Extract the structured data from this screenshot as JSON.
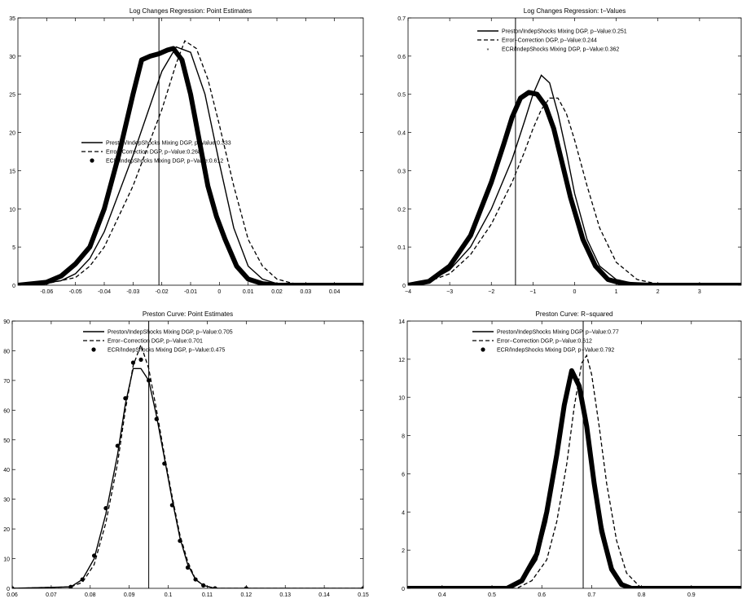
{
  "chart_data": [
    {
      "type": "line",
      "title": "Log Changes Regression: Point Estimates",
      "xlim": [
        -0.07,
        0.05
      ],
      "ylim": [
        0,
        35
      ],
      "xticks": [
        -0.06,
        -0.05,
        -0.04,
        -0.03,
        -0.02,
        -0.01,
        0,
        0.01,
        0.02,
        0.03,
        0.04
      ],
      "xtick_labels": [
        "-0.06",
        "-0.05",
        "-0.04",
        "-0.03",
        "-0.02",
        "-0.01",
        "0",
        "0.01",
        "0.02",
        "0.03",
        "0.04"
      ],
      "yticks": [
        0,
        5,
        10,
        15,
        20,
        25,
        30,
        35
      ],
      "ytick_labels": [
        "0",
        "5",
        "10",
        "15",
        "20",
        "25",
        "30",
        "35"
      ],
      "vline": -0.021,
      "legend_position": "center-left",
      "series": [
        {
          "name": "Preston/IndepShocks Mixing DGP, p−Value:0.333",
          "style": "solid",
          "x": [
            -0.07,
            -0.06,
            -0.055,
            -0.05,
            -0.045,
            -0.04,
            -0.035,
            -0.03,
            -0.025,
            -0.02,
            -0.015,
            -0.01,
            -0.005,
            0,
            0.005,
            0.01,
            0.015,
            0.02,
            0.03,
            0.05
          ],
          "y": [
            0,
            0.3,
            0.6,
            1.5,
            3.5,
            7,
            12,
            17,
            22.5,
            28,
            31.2,
            30.5,
            25,
            16,
            7.5,
            2.5,
            0.8,
            0.2,
            0,
            0
          ]
        },
        {
          "name": "Error−Correction DGP, p−Value:0.268",
          "style": "dashed",
          "x": [
            -0.07,
            -0.06,
            -0.05,
            -0.045,
            -0.04,
            -0.035,
            -0.03,
            -0.025,
            -0.02,
            -0.015,
            -0.012,
            -0.008,
            -0.004,
            0,
            0.005,
            0.01,
            0.015,
            0.02,
            0.025,
            0.03,
            0.05
          ],
          "y": [
            0,
            0.2,
            1,
            2.5,
            5,
            9,
            13,
            18,
            23,
            29,
            32,
            31,
            27,
            21,
            13,
            6,
            2.5,
            0.8,
            0.3,
            0,
            0
          ]
        },
        {
          "name": "ECR/IndepShocks Mixing DGP, p−Value:0.612",
          "style": "dots",
          "x": [
            -0.07,
            -0.06,
            -0.055,
            -0.05,
            -0.045,
            -0.04,
            -0.035,
            -0.03,
            -0.027,
            -0.024,
            -0.021,
            -0.018,
            -0.016,
            -0.013,
            -0.01,
            -0.007,
            -0.004,
            -0.001,
            0.002,
            0.006,
            0.01,
            0.015,
            0.02,
            0.03,
            0.05
          ],
          "y": [
            0,
            0.4,
            1.2,
            2.8,
            5,
            10,
            17,
            25,
            29.5,
            30,
            30.3,
            30.8,
            31,
            29.5,
            25,
            19,
            13,
            9,
            6,
            2.5,
            0.8,
            0.2,
            0,
            0,
            0
          ]
        }
      ]
    },
    {
      "type": "line",
      "title": "Log Changes Regression: t−Values",
      "xlim": [
        -4,
        4
      ],
      "ylim": [
        0,
        0.7
      ],
      "xticks": [
        -4,
        -3,
        -2,
        -1,
        0,
        1,
        2,
        3
      ],
      "xtick_labels": [
        "−4",
        "−3",
        "−2",
        "−1",
        "0",
        "1",
        "2",
        "3"
      ],
      "yticks": [
        0,
        0.1,
        0.2,
        0.3,
        0.4,
        0.5,
        0.6,
        0.7
      ],
      "ytick_labels": [
        "0",
        "0.1",
        "0.2",
        "0.3",
        "0.4",
        "0.5",
        "0.6",
        "0.7"
      ],
      "vline": -1.42,
      "legend_position": "top-center",
      "series": [
        {
          "name": "Preston/IndepShocks Mixing DGP, p−Value:0.251",
          "style": "solid",
          "x": [
            -4,
            -3.5,
            -3,
            -2.5,
            -2,
            -1.5,
            -1.2,
            -1,
            -0.8,
            -0.6,
            -0.4,
            -0.2,
            0,
            0.3,
            0.6,
            1,
            1.5,
            2,
            3,
            4
          ],
          "y": [
            0,
            0.01,
            0.04,
            0.1,
            0.2,
            0.33,
            0.43,
            0.5,
            0.55,
            0.53,
            0.45,
            0.35,
            0.24,
            0.12,
            0.05,
            0.015,
            0.003,
            0,
            0,
            0
          ]
        },
        {
          "name": "Error−Correction DGP, p−Value:0.244",
          "style": "dashed",
          "x": [
            -4,
            -3.5,
            -3,
            -2.5,
            -2,
            -1.5,
            -1.2,
            -1,
            -0.8,
            -0.6,
            -0.4,
            -0.2,
            0,
            0.3,
            0.6,
            1,
            1.5,
            2,
            3,
            4
          ],
          "y": [
            0,
            0.01,
            0.03,
            0.08,
            0.16,
            0.27,
            0.35,
            0.41,
            0.46,
            0.49,
            0.49,
            0.45,
            0.38,
            0.26,
            0.15,
            0.06,
            0.015,
            0.003,
            0,
            0
          ]
        },
        {
          "name": "ECR/IndepShocks Mixing DGP, p−Value:0.362",
          "style": "stars",
          "x": [
            -4,
            -3.5,
            -3,
            -2.5,
            -2,
            -1.7,
            -1.5,
            -1.3,
            -1.1,
            -0.9,
            -0.7,
            -0.5,
            -0.3,
            -0.1,
            0.2,
            0.5,
            0.8,
            1.2,
            1.8,
            2.5,
            4
          ],
          "y": [
            0,
            0.01,
            0.05,
            0.13,
            0.27,
            0.37,
            0.44,
            0.49,
            0.505,
            0.5,
            0.47,
            0.41,
            0.32,
            0.23,
            0.12,
            0.05,
            0.015,
            0.003,
            0,
            0,
            0
          ]
        }
      ]
    },
    {
      "type": "line",
      "title": "Preston Curve: Point Estimates",
      "xlim": [
        0.06,
        0.15
      ],
      "ylim": [
        0,
        90
      ],
      "xticks": [
        0.06,
        0.07,
        0.08,
        0.09,
        0.1,
        0.11,
        0.12,
        0.13,
        0.14,
        0.15
      ],
      "xtick_labels": [
        "0.06",
        "0.07",
        "0.08",
        "0.09",
        "0.1",
        "0.11",
        "0.12",
        "0.13",
        "0.14",
        "0.15"
      ],
      "yticks": [
        0,
        10,
        20,
        30,
        40,
        50,
        60,
        70,
        80,
        90
      ],
      "ytick_labels": [
        "0",
        "10",
        "20",
        "30",
        "40",
        "50",
        "60",
        "70",
        "80",
        "90"
      ],
      "vline": 0.095,
      "legend_position": "top-center",
      "series": [
        {
          "name": "Preston/IndepShocks Mixing DGP, p−Value:0.705",
          "style": "solid",
          "x": [
            0.06,
            0.075,
            0.078,
            0.081,
            0.084,
            0.087,
            0.089,
            0.091,
            0.093,
            0.095,
            0.097,
            0.099,
            0.101,
            0.103,
            0.105,
            0.107,
            0.109,
            0.112,
            0.12,
            0.15
          ],
          "y": [
            0,
            0.5,
            3,
            10,
            25,
            45,
            62,
            74,
            74,
            70,
            58,
            44,
            30,
            17,
            8,
            3,
            1,
            0,
            0,
            0
          ]
        },
        {
          "name": "Error−Correction DGP, p−Value:0.701",
          "style": "dashed",
          "x": [
            0.06,
            0.075,
            0.078,
            0.081,
            0.084,
            0.087,
            0.089,
            0.091,
            0.093,
            0.095,
            0.097,
            0.099,
            0.101,
            0.103,
            0.105,
            0.107,
            0.109,
            0.112,
            0.12,
            0.15
          ],
          "y": [
            0,
            0.5,
            2,
            8,
            22,
            42,
            60,
            75,
            82,
            74,
            60,
            45,
            31,
            18,
            9,
            3,
            1,
            0,
            0,
            0
          ]
        },
        {
          "name": "ECR/IndepShocks Mixing DGP, p−Value:0.475",
          "style": "dots",
          "x": [
            0.06,
            0.075,
            0.078,
            0.081,
            0.084,
            0.087,
            0.089,
            0.091,
            0.093,
            0.095,
            0.097,
            0.099,
            0.101,
            0.103,
            0.105,
            0.107,
            0.109,
            0.112,
            0.12,
            0.15
          ],
          "y": [
            0,
            0.5,
            3,
            11,
            27,
            48,
            64,
            76,
            77,
            70,
            57,
            42,
            28,
            16,
            7,
            3,
            1,
            0,
            0,
            0
          ]
        }
      ]
    },
    {
      "type": "line",
      "title": "Preston Curve: R−squared",
      "xlim": [
        0.33,
        1.0
      ],
      "ylim": [
        0,
        14
      ],
      "xticks": [
        0.4,
        0.5,
        0.6,
        0.7,
        0.8,
        0.9
      ],
      "xtick_labels": [
        "0.4",
        "0.5",
        "0.6",
        "0.7",
        "0.8",
        "0.9"
      ],
      "yticks": [
        0,
        2,
        4,
        6,
        8,
        10,
        12,
        14
      ],
      "ytick_labels": [
        "0",
        "2",
        "4",
        "6",
        "8",
        "10",
        "12",
        "14"
      ],
      "vline": 0.683,
      "legend_position": "top-center",
      "series": [
        {
          "name": "Preston/IndepShocks Mixing DGP, p−Value:0.77",
          "style": "solid",
          "x": [
            0.33,
            0.53,
            0.56,
            0.59,
            0.61,
            0.63,
            0.645,
            0.66,
            0.675,
            0.69,
            0.705,
            0.72,
            0.74,
            0.76,
            0.78,
            1.0
          ],
          "y": [
            0,
            0,
            0.3,
            1.5,
            3.5,
            6.5,
            9.2,
            11.3,
            10.8,
            9,
            6,
            3.5,
            1.2,
            0.3,
            0,
            0
          ]
        },
        {
          "name": "Error−Correction DGP, p−Value:0.612",
          "style": "dashed",
          "x": [
            0.33,
            0.55,
            0.58,
            0.61,
            0.63,
            0.65,
            0.665,
            0.68,
            0.69,
            0.7,
            0.715,
            0.73,
            0.75,
            0.77,
            0.8,
            1.0
          ],
          "y": [
            0,
            0,
            0.4,
            1.5,
            3.5,
            6.5,
            9.5,
            11.8,
            12.2,
            11.2,
            8.5,
            5.5,
            2.5,
            0.8,
            0,
            0
          ]
        },
        {
          "name": "ECR/IndepShocks Mixing DGP, p−Value:0.792",
          "style": "dots",
          "x": [
            0.33,
            0.53,
            0.56,
            0.59,
            0.61,
            0.63,
            0.645,
            0.66,
            0.675,
            0.69,
            0.705,
            0.72,
            0.74,
            0.76,
            0.78,
            1.0
          ],
          "y": [
            0,
            0,
            0.4,
            1.8,
            4,
            7,
            9.6,
            11.4,
            10.6,
            8.5,
            5.5,
            3,
            1,
            0.2,
            0,
            0
          ]
        }
      ]
    }
  ]
}
